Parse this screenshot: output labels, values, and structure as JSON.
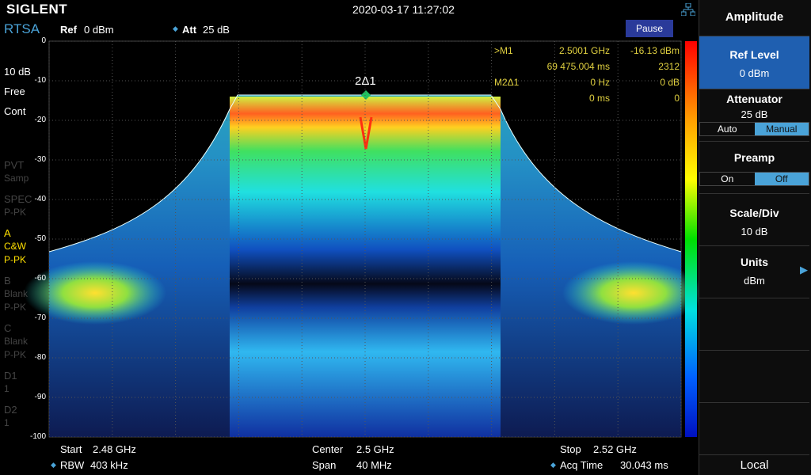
{
  "header": {
    "brand": "SIGLENT",
    "datetime": "2020-03-17 11:27:02"
  },
  "toolbar": {
    "mode": "RTSA",
    "ref_label": "Ref",
    "ref_value": "0 dBm",
    "att_label": "Att",
    "att_value": "25 dB",
    "pause": "Pause"
  },
  "left_panel": {
    "scale": "10 dB",
    "trigger": "Free",
    "sweep": "Cont",
    "traces": [
      {
        "lines": [
          "PVT",
          "Samp"
        ],
        "active": false
      },
      {
        "lines": [
          "SPEC",
          "P-PK"
        ],
        "active": false
      },
      {
        "lines": [
          "A",
          "C&W",
          "P-PK"
        ],
        "active": true
      },
      {
        "lines": [
          "B",
          "Blank",
          "P-PK"
        ],
        "active": false
      },
      {
        "lines": [
          "C",
          "Blank",
          "P-PK"
        ],
        "active": false
      },
      {
        "lines": [
          "D1",
          "1"
        ],
        "active": false
      },
      {
        "lines": [
          "D2",
          "1"
        ],
        "active": false
      }
    ]
  },
  "plot": {
    "y_labels": [
      "0",
      "-10",
      "-20",
      "-30",
      "-40",
      "-50",
      "-60",
      "-70",
      "-80",
      "-90",
      "-100"
    ],
    "marker_label": "2Δ1",
    "markers": [
      {
        "name": ">M1",
        "x": "2.5001 GHz",
        "y": "-16.13 dBm"
      },
      {
        "x": "69 475.004 ms",
        "y": "2312"
      },
      {
        "name": "M2Δ1",
        "x": "0 Hz",
        "y": "0 dB"
      },
      {
        "x": "0 ms",
        "y": "0"
      }
    ]
  },
  "footer": {
    "start_label": "Start",
    "start": "2.48 GHz",
    "rbw_label": "RBW",
    "rbw": "403 kHz",
    "center_label": "Center",
    "center": "2.5 GHz",
    "span_label": "Span",
    "span": "40 MHz",
    "stop_label": "Stop",
    "stop": "2.52 GHz",
    "acq_label": "Acq Time",
    "acq": "30.043 ms"
  },
  "menu": {
    "title": "Amplitude",
    "ref_level": {
      "label": "Ref Level",
      "value": "0 dBm"
    },
    "attenuator": {
      "label": "Attenuator",
      "value": "25 dB",
      "options": [
        "Auto",
        "Manual"
      ]
    },
    "preamp": {
      "label": "Preamp",
      "options": [
        "On",
        "Off"
      ]
    },
    "scale_div": {
      "label": "Scale/Div",
      "value": "10 dB"
    },
    "units": {
      "label": "Units",
      "value": "dBm"
    },
    "local": "Local"
  }
}
